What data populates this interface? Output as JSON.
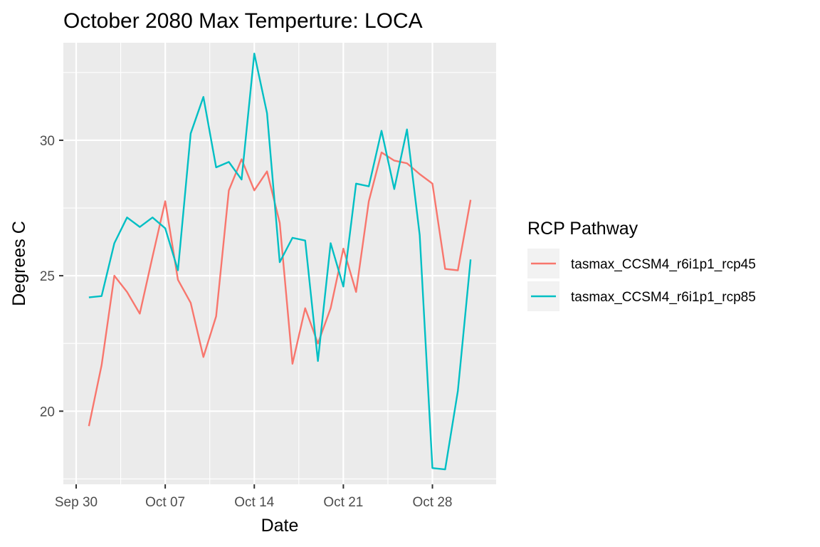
{
  "chart_data": {
    "type": "line",
    "title": "October 2080 Max Temperture: LOCA",
    "xlabel": "Date",
    "ylabel": "Degrees C",
    "x": [
      "2080-10-01",
      "2080-10-02",
      "2080-10-03",
      "2080-10-04",
      "2080-10-05",
      "2080-10-06",
      "2080-10-07",
      "2080-10-08",
      "2080-10-09",
      "2080-10-10",
      "2080-10-11",
      "2080-10-12",
      "2080-10-13",
      "2080-10-14",
      "2080-10-15",
      "2080-10-16",
      "2080-10-17",
      "2080-10-18",
      "2080-10-19",
      "2080-10-20",
      "2080-10-21",
      "2080-10-22",
      "2080-10-23",
      "2080-10-24",
      "2080-10-25",
      "2080-10-26",
      "2080-10-27",
      "2080-10-28",
      "2080-10-29",
      "2080-10-30",
      "2080-10-31"
    ],
    "xlim": [
      "2080-09-30",
      "2080-11-01"
    ],
    "x_ticks": [
      {
        "date": "2080-09-30",
        "label": "Sep 30"
      },
      {
        "date": "2080-10-07",
        "label": "Oct 07"
      },
      {
        "date": "2080-10-14",
        "label": "Oct 14"
      },
      {
        "date": "2080-10-21",
        "label": "Oct 21"
      },
      {
        "date": "2080-10-28",
        "label": "Oct 28"
      }
    ],
    "ylim": [
      17.3,
      33.6
    ],
    "y_ticks": [
      20,
      25,
      30
    ],
    "grid": true,
    "legend": {
      "title": "RCP Pathway",
      "position": "right"
    },
    "series": [
      {
        "name": "tasmax_CCSM4_r6i1p1_rcp45",
        "color": "#F8766D",
        "values": [
          19.45,
          21.7,
          25.0,
          24.4,
          23.6,
          25.7,
          27.75,
          24.85,
          24.0,
          22.0,
          23.5,
          28.15,
          29.3,
          28.15,
          28.85,
          26.95,
          21.75,
          23.8,
          22.5,
          23.8,
          26.0,
          24.4,
          27.75,
          29.55,
          29.25,
          29.15,
          28.75,
          28.4,
          25.25,
          25.2,
          27.8
        ]
      },
      {
        "name": "tasmax_CCSM4_r6i1p1_rcp85",
        "color": "#00BFC4",
        "values": [
          24.2,
          24.25,
          26.2,
          27.15,
          26.8,
          27.15,
          26.75,
          25.2,
          30.25,
          31.6,
          29.0,
          29.2,
          28.55,
          33.2,
          31.0,
          25.5,
          26.4,
          26.3,
          21.85,
          26.2,
          24.6,
          28.4,
          28.3,
          30.35,
          28.2,
          30.4,
          26.5,
          17.9,
          17.85,
          20.75,
          25.6
        ]
      }
    ]
  }
}
